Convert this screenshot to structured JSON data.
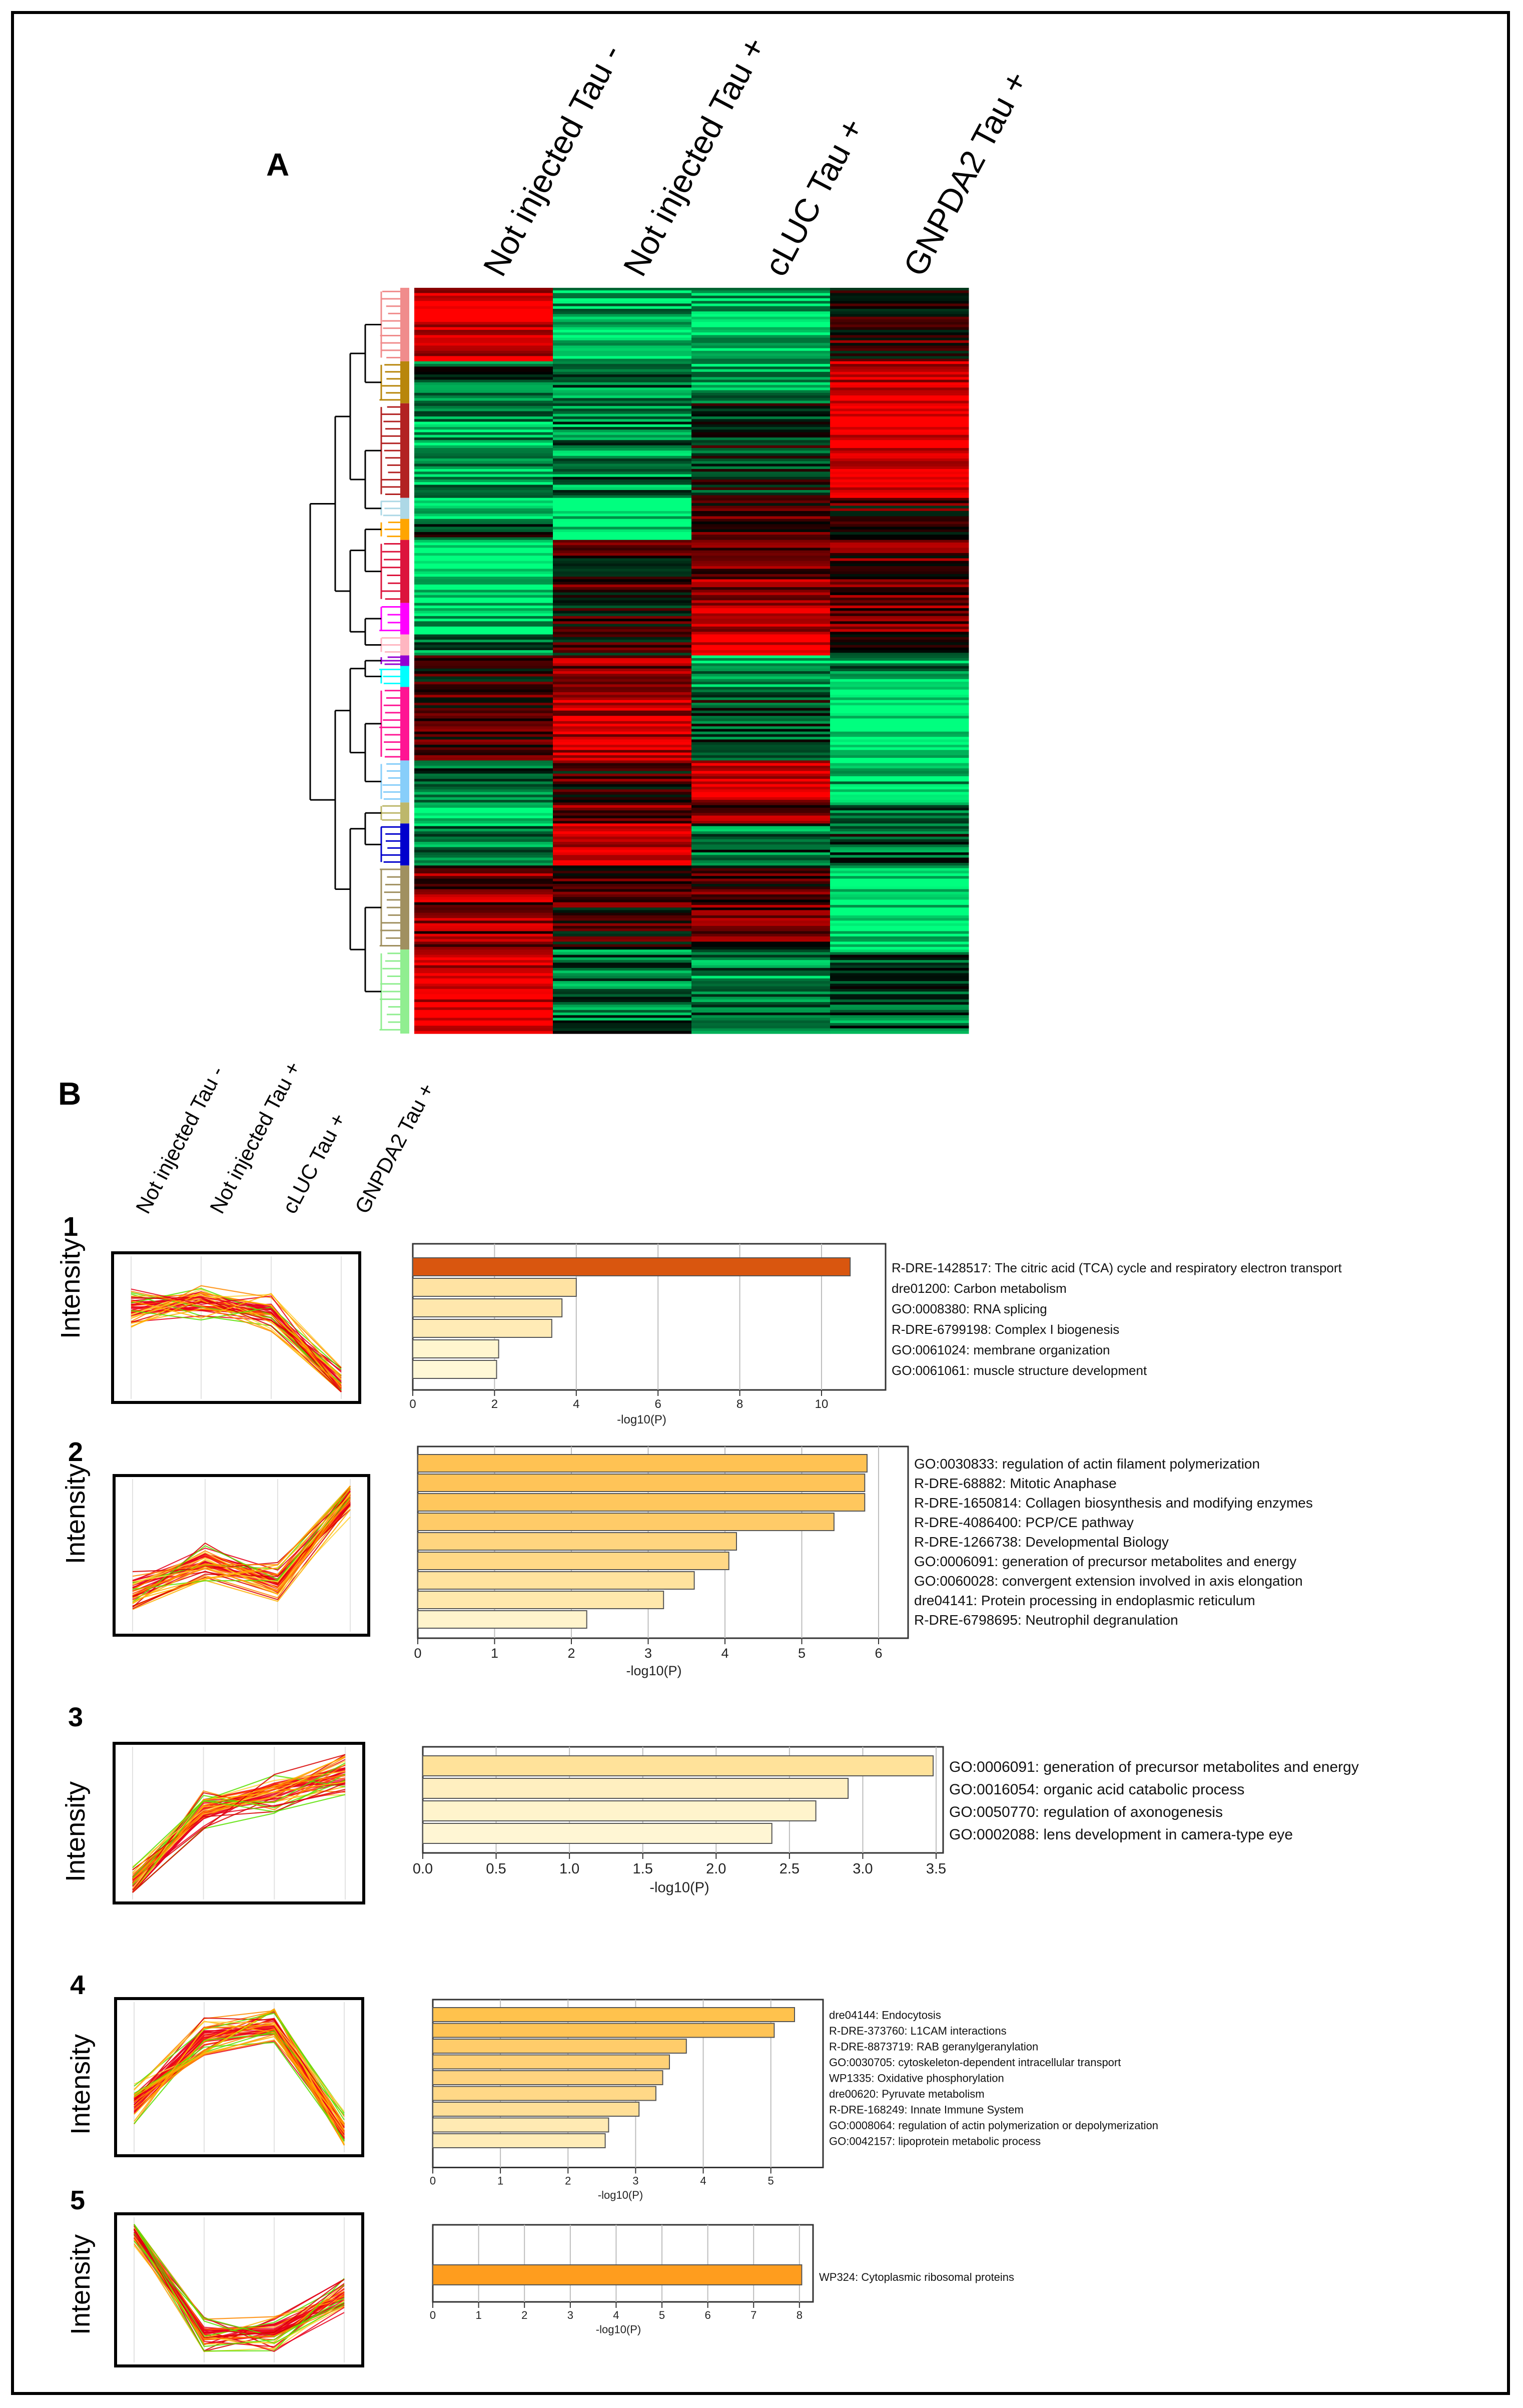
{
  "panel_a": {
    "letter": "A",
    "columns": [
      "Not injected Tau -",
      "Not injected Tau +",
      "cLUC Tau +",
      "GNPDA2 Tau +"
    ]
  },
  "panel_b": {
    "letter": "B",
    "columns": [
      "Not injected Tau -",
      "Not injected Tau +",
      "cLUC Tau +",
      "GNPDA2 Tau +"
    ]
  },
  "colors": {
    "heat_red": "#ff0000",
    "heat_green": "#00ff7f",
    "line_red": "#e8001c",
    "line_yellow": "#ffd23a",
    "line_green": "#58e000"
  },
  "chart_data": [
    {
      "type": "heatmap",
      "title": "A",
      "columns": [
        "Not injected Tau -",
        "Not injected Tau +",
        "cLUC Tau +",
        "GNPDA2 Tau +"
      ],
      "row_clusters": [
        {
          "color": "#f08c8c",
          "size": 7,
          "values": [
            0.9,
            -0.7,
            -0.8,
            0.2
          ]
        },
        {
          "color": "#b8860b",
          "size": 4,
          "values": [
            -0.3,
            -0.5,
            -0.7,
            0.9
          ]
        },
        {
          "color": "#b22222",
          "size": 9,
          "values": [
            -0.6,
            -0.5,
            -0.1,
            1.0
          ]
        },
        {
          "color": "#add8e6",
          "size": 2,
          "values": [
            -0.9,
            -1.0,
            0.3,
            0.2
          ]
        },
        {
          "color": "#ffa500",
          "size": 2,
          "values": [
            -0.2,
            -1.0,
            0.4,
            0.1
          ]
        },
        {
          "color": "#dc143c",
          "size": 6,
          "values": [
            -1.0,
            0.2,
            0.5,
            0.3
          ]
        },
        {
          "color": "#ff00ff",
          "size": 3,
          "values": [
            -0.8,
            0.1,
            0.6,
            0.4
          ]
        },
        {
          "color": "#ffb6c1",
          "size": 2,
          "values": [
            -0.5,
            0.1,
            1.0,
            -0.2
          ]
        },
        {
          "color": "#9400d3",
          "size": 1,
          "values": [
            0.2,
            0.5,
            -0.9,
            -0.5
          ]
        },
        {
          "color": "#00ffff",
          "size": 2,
          "values": [
            0.1,
            0.6,
            -0.6,
            -0.6
          ]
        },
        {
          "color": "#ff1493",
          "size": 7,
          "values": [
            0.2,
            0.8,
            -0.2,
            -1.0
          ]
        },
        {
          "color": "#87cefa",
          "size": 4,
          "values": [
            -0.3,
            0.2,
            0.8,
            -0.8
          ]
        },
        {
          "color": "#bdb76b",
          "size": 2,
          "values": [
            -0.8,
            0.4,
            0.5,
            -0.5
          ]
        },
        {
          "color": "#0000cd",
          "size": 4,
          "values": [
            -0.6,
            0.9,
            -0.4,
            -0.3
          ]
        },
        {
          "color": "#a09060",
          "size": 8,
          "values": [
            0.5,
            0.2,
            0.3,
            -1.0
          ]
        },
        {
          "color": "#90ee90",
          "size": 8,
          "values": [
            0.9,
            -0.4,
            -0.5,
            -0.4
          ]
        }
      ]
    },
    {
      "type": "line",
      "id": 1,
      "number": "1",
      "ylabel": "Intensity",
      "x": [
        "Not injected Tau -",
        "Not injected Tau +",
        "cLUC Tau +",
        "GNPDA2 Tau +"
      ],
      "mean_profile": [
        0.65,
        0.7,
        0.62,
        0.05
      ]
    },
    {
      "type": "bar",
      "id": 1,
      "xlabel": "-log10(P)",
      "ylim_x": [
        0,
        11.2
      ],
      "ticks": [
        0,
        2,
        4,
        6,
        8,
        10
      ],
      "bar_color": "#ffd98a",
      "categories": [
        "R-DRE-1428517: The citric acid (TCA) cycle and respiratory electron transport",
        "dre01200: Carbon metabolism",
        "GO:0008380: RNA splicing",
        "R-DRE-6799198: Complex I biogenesis",
        "GO:0061024: membrane organization",
        "GO:0061061: muscle structure development"
      ],
      "values": [
        10.7,
        4.0,
        3.65,
        3.4,
        2.1,
        2.05
      ]
    },
    {
      "type": "line",
      "id": 2,
      "number": "2",
      "ylabel": "Intensity",
      "x": [
        "Not injected Tau -",
        "Not injected Tau +",
        "cLUC Tau +",
        "GNPDA2 Tau +"
      ],
      "mean_profile": [
        0.25,
        0.45,
        0.3,
        0.92
      ]
    },
    {
      "type": "bar",
      "id": 2,
      "xlabel": "-log10(P)",
      "ylim_x": [
        0,
        6.15
      ],
      "ticks": [
        0,
        1,
        2,
        3,
        4,
        5,
        6
      ],
      "bar_color": "#ffc85a",
      "categories": [
        "GO:0030833: regulation of actin filament polymerization",
        "R-DRE-68882: Mitotic Anaphase",
        "R-DRE-1650814: Collagen biosynthesis and modifying enzymes",
        "R-DRE-4086400: PCP/CE pathway",
        "R-DRE-1266738: Developmental Biology",
        "GO:0006091: generation of precursor metabolites and energy",
        "GO:0060028: convergent extension involved in axis elongation",
        "dre04141: Protein processing in endoplasmic reticulum",
        "R-DRE-6798695: Neutrophil degranulation"
      ],
      "values": [
        5.85,
        5.82,
        5.82,
        5.42,
        4.15,
        4.05,
        3.6,
        3.2,
        2.2
      ]
    },
    {
      "type": "line",
      "id": 3,
      "number": "3",
      "ylabel": "Intensity",
      "x": [
        "Not injected Tau -",
        "Not injected Tau +",
        "cLUC Tau +",
        "GNPDA2 Tau +"
      ],
      "mean_profile": [
        0.05,
        0.6,
        0.72,
        0.85
      ]
    },
    {
      "type": "bar",
      "id": 3,
      "xlabel": "-log10(P)",
      "ylim_x": [
        0,
        3.5
      ],
      "ticks": [
        "0.0",
        "0.5",
        "1.0",
        "1.5",
        "2.0",
        "2.5",
        "3.0",
        "3.5"
      ],
      "bar_color": "#ffe7a0",
      "categories": [
        "GO:0006091: generation of precursor metabolites and energy",
        "GO:0016054: organic acid catabolic process",
        "GO:0050770: regulation of axonogenesis",
        "GO:0002088: lens development in camera-type eye"
      ],
      "values": [
        3.48,
        2.9,
        2.68,
        2.38
      ]
    },
    {
      "type": "line",
      "id": 4,
      "number": "4",
      "ylabel": "Intensity",
      "x": [
        "Not injected Tau -",
        "Not injected Tau +",
        "cLUC Tau +",
        "GNPDA2 Tau +"
      ],
      "mean_profile": [
        0.3,
        0.8,
        0.88,
        0.1
      ]
    },
    {
      "type": "bar",
      "id": 4,
      "xlabel": "-log10(P)",
      "ylim_x": [
        0,
        5.55
      ],
      "ticks": [
        0,
        1,
        2,
        3,
        4,
        5
      ],
      "bar_color": "#ffcf6a",
      "categories": [
        "dre04144: Endocytosis",
        "R-DRE-373760: L1CAM interactions",
        "R-DRE-8873719: RAB geranylgeranylation",
        "GO:0030705: cytoskeleton-dependent intracellular transport",
        "WP1335: Oxidative phosphorylation",
        "dre00620: Pyruvate metabolism",
        "R-DRE-168249: Innate Immune System",
        "GO:0008064: regulation of actin polymerization or depolymerization",
        "GO:0042157: lipoprotein metabolic process"
      ],
      "values": [
        5.35,
        5.05,
        3.75,
        3.5,
        3.4,
        3.3,
        3.05,
        2.6,
        2.55
      ]
    },
    {
      "type": "line",
      "id": 5,
      "number": "5",
      "ylabel": "Intensity",
      "x": [
        "Not injected Tau -",
        "Not injected Tau +",
        "cLUC Tau +",
        "GNPDA2 Tau +"
      ],
      "mean_profile": [
        0.95,
        0.15,
        0.18,
        0.45
      ]
    },
    {
      "type": "bar",
      "id": 5,
      "xlabel": "-log10(P)",
      "ylim_x": [
        0,
        8.1
      ],
      "ticks": [
        0,
        1,
        2,
        3,
        4,
        5,
        6,
        7,
        8
      ],
      "bar_color": "#ff9d1e",
      "categories": [
        "WP324: Cytoplasmic ribosomal proteins"
      ],
      "values": [
        8.05
      ]
    }
  ]
}
